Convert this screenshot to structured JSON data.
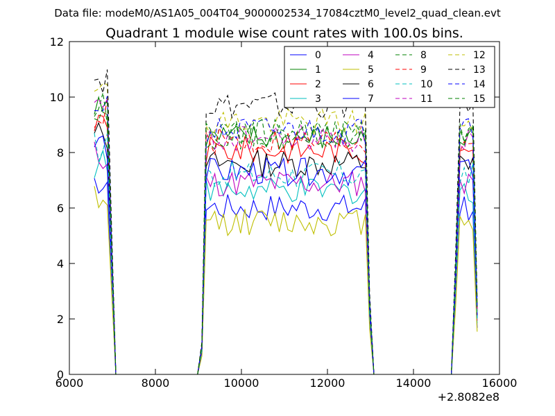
{
  "chart_data": {
    "type": "line",
    "suptitle": "Data file: modeM0/AS1A05_004T04_9000002534_17084cztM0_level2_quad_clean.evt",
    "title": "Quadrant 1 module wise count rates with 100.0s bins.",
    "xlabel": "",
    "ylabel": "",
    "xlim": [
      6000,
      16000
    ],
    "ylim": [
      0,
      12
    ],
    "x_offset_label": "+2.8082e8",
    "x_ticks": [
      6000,
      8000,
      10000,
      12000,
      14000,
      16000
    ],
    "y_ticks": [
      0,
      2,
      4,
      6,
      8,
      10,
      12
    ],
    "grid": false,
    "legend": {
      "placement": "top-right",
      "columns": 4
    },
    "segments": [
      {
        "start": 6580,
        "end": 7080,
        "shape": "pass1"
      },
      {
        "start": 7180,
        "end": 8980,
        "shape": "gap"
      },
      {
        "start": 8980,
        "end": 13080,
        "shape": "pass2"
      },
      {
        "start": 13180,
        "end": 14880,
        "shape": "gap"
      },
      {
        "start": 14880,
        "end": 15480,
        "shape": "pass3"
      }
    ],
    "bin_size": 100,
    "series": [
      {
        "name": "0",
        "style": "solid",
        "color": "#0000ff",
        "level": 6.0
      },
      {
        "name": "1",
        "style": "solid",
        "color": "#008000",
        "level": 8.5
      },
      {
        "name": "2",
        "style": "solid",
        "color": "#ff0000",
        "level": 8.1
      },
      {
        "name": "3",
        "style": "solid",
        "color": "#00bfbf",
        "level": 6.6
      },
      {
        "name": "4",
        "style": "solid",
        "color": "#bf00bf",
        "level": 6.9
      },
      {
        "name": "5",
        "style": "solid",
        "color": "#bfbf00",
        "level": 5.5
      },
      {
        "name": "6",
        "style": "solid",
        "color": "#000000",
        "level": 7.6
      },
      {
        "name": "7",
        "style": "solid",
        "color": "#0000ff",
        "level": 7.3
      },
      {
        "name": "8",
        "style": "dashed",
        "color": "#008000",
        "level": 8.6
      },
      {
        "name": "9",
        "style": "dashed",
        "color": "#ff0000",
        "level": 8.4
      },
      {
        "name": "10",
        "style": "dashed",
        "color": "#00bfbf",
        "level": 7.2
      },
      {
        "name": "11",
        "style": "dashed",
        "color": "#bf00bf",
        "level": 8.5
      },
      {
        "name": "12",
        "style": "dashed",
        "color": "#bfbf00",
        "level": 9.1
      },
      {
        "name": "13",
        "style": "dashed",
        "color": "#000000",
        "level": 9.7
      },
      {
        "name": "14",
        "style": "dashed",
        "color": "#0000ff",
        "level": 8.8
      },
      {
        "name": "15",
        "style": "dashed",
        "color": "#008000",
        "level": 8.7
      }
    ]
  }
}
